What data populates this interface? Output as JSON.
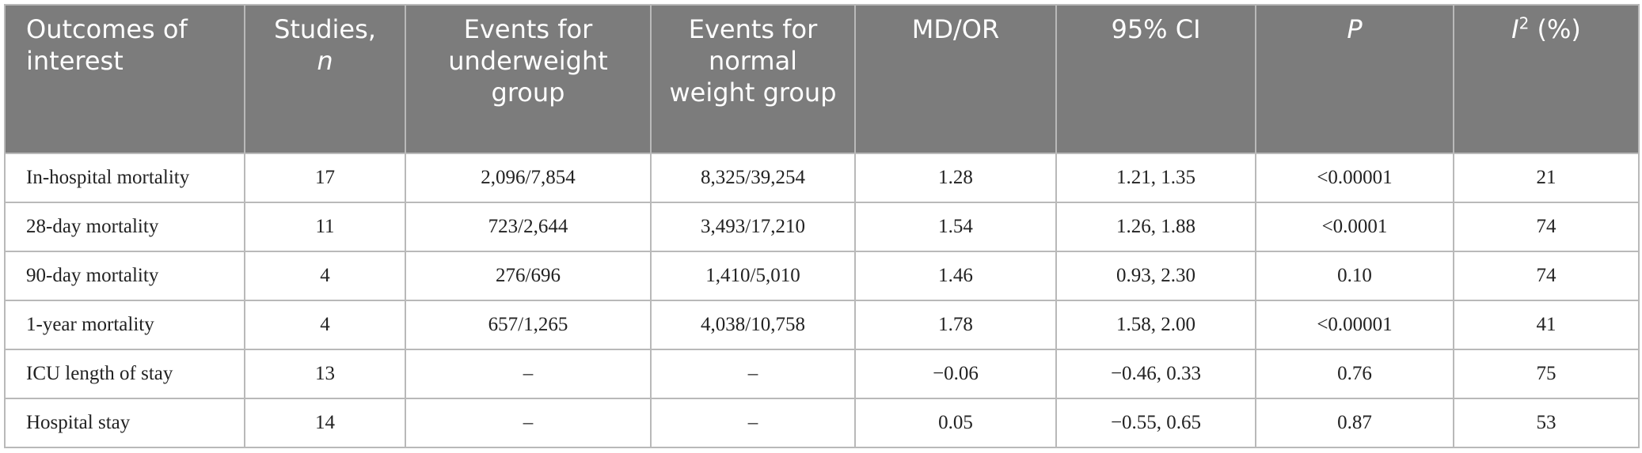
{
  "table": {
    "headers": [
      {
        "text": "Outcomes of interest"
      },
      {
        "text": "Studies,",
        "italic_part": "n"
      },
      {
        "text": "Events for underweight group"
      },
      {
        "text": "Events for normal weight group"
      },
      {
        "text": "MD/OR"
      },
      {
        "text": "95% CI"
      },
      {
        "italic_part": "P"
      },
      {
        "italic_part": "I",
        "sup": "2",
        "text": " (%)"
      }
    ],
    "rows": [
      [
        "In-hospital mortality",
        "17",
        "2,096/7,854",
        "8,325/39,254",
        "1.28",
        "1.21, 1.35",
        "<0.00001",
        "21"
      ],
      [
        "28-day mortality",
        "11",
        "723/2,644",
        "3,493/17,210",
        "1.54",
        "1.26, 1.88",
        "<0.0001",
        "74"
      ],
      [
        "90-day mortality",
        "4",
        "276/696",
        "1,410/5,010",
        "1.46",
        "0.93, 2.30",
        "0.10",
        "74"
      ],
      [
        "1-year mortality",
        "4",
        "657/1,265",
        "4,038/10,758",
        "1.78",
        "1.58, 2.00",
        "<0.00001",
        "41"
      ],
      [
        "ICU length of stay",
        "13",
        "–",
        "–",
        "−0.06",
        "−0.46, 0.33",
        "0.76",
        "75"
      ],
      [
        "Hospital stay",
        "14",
        "–",
        "–",
        "0.05",
        "−0.55, 0.65",
        "0.87",
        "53"
      ]
    ]
  }
}
